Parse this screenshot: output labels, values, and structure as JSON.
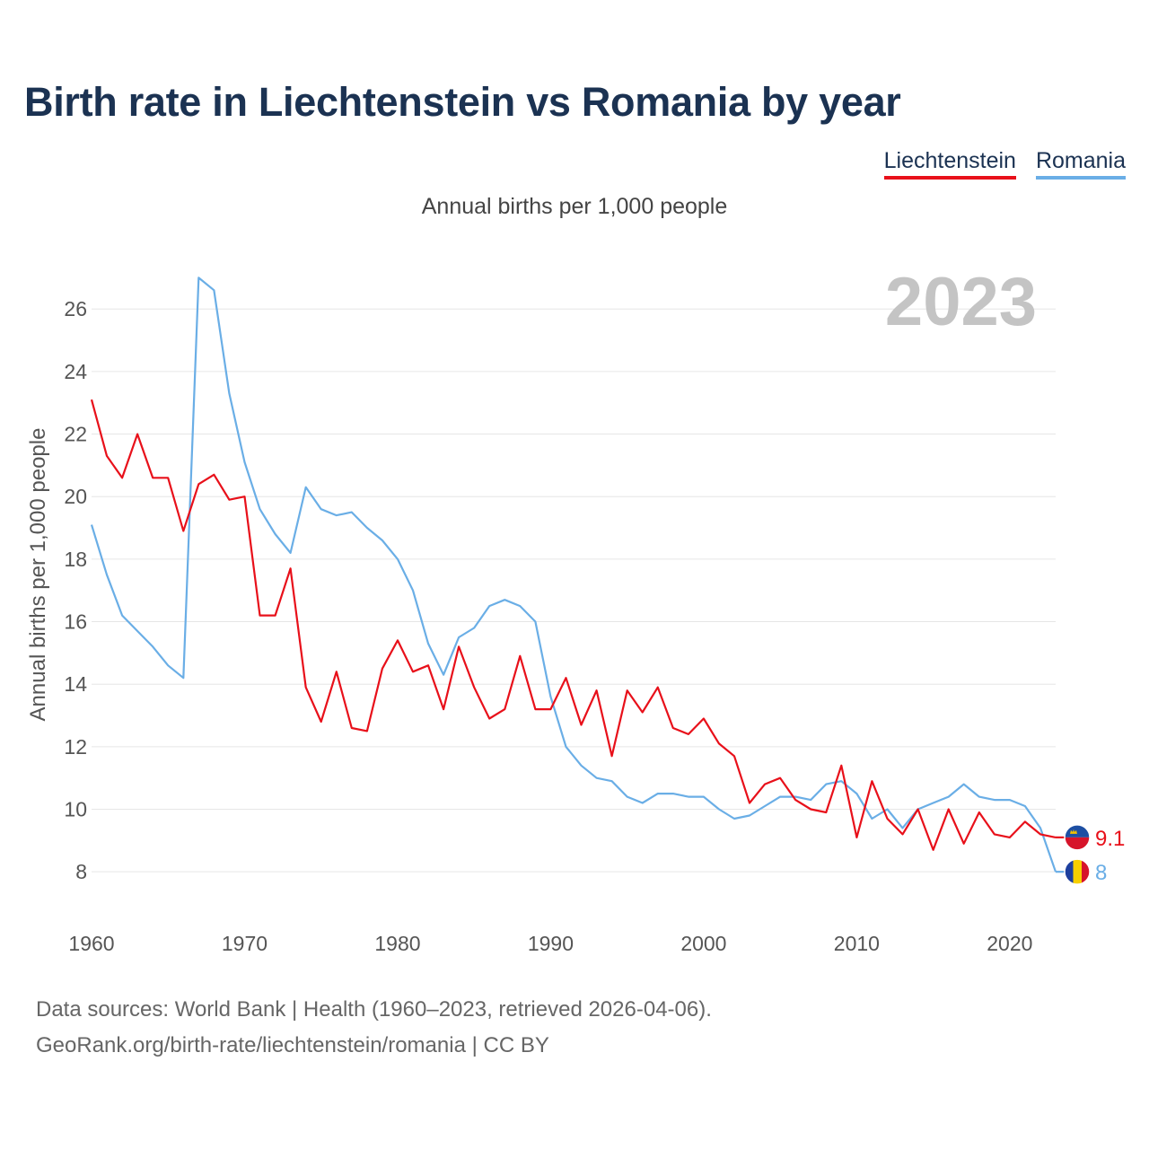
{
  "header": {
    "title": "Birth rate in Liechtenstein vs Romania by year",
    "subtitle": "Annual births per 1,000 people"
  },
  "footer": {
    "source": "Data sources: World Bank | Health (1960–2023, retrieved 2026-04-06).",
    "credit": "GeoRank.org/birth-rate/liechtenstein/romania | CC BY"
  },
  "colors": {
    "liechtenstein": "#e8101a",
    "romania": "#6aaee6",
    "title": "#1b3252"
  },
  "chart_data": {
    "type": "line",
    "title": "Birth rate in Liechtenstein vs Romania by year",
    "subtitle": "Annual births per 1,000 people",
    "ylabel": "Annual births per 1,000 people",
    "xlabel": "",
    "current_year_label": "2023",
    "xlim": [
      1960,
      2023
    ],
    "ylim": [
      7,
      27.5
    ],
    "x_ticks": [
      1960,
      1970,
      1980,
      1990,
      2000,
      2010,
      2020
    ],
    "y_ticks": [
      8,
      10,
      12,
      14,
      16,
      18,
      20,
      22,
      24,
      26
    ],
    "grid": true,
    "legend_position": "top-right",
    "x": [
      1960,
      1961,
      1962,
      1963,
      1964,
      1965,
      1966,
      1967,
      1968,
      1969,
      1970,
      1971,
      1972,
      1973,
      1974,
      1975,
      1976,
      1977,
      1978,
      1979,
      1980,
      1981,
      1982,
      1983,
      1984,
      1985,
      1986,
      1987,
      1988,
      1989,
      1990,
      1991,
      1992,
      1993,
      1994,
      1995,
      1996,
      1997,
      1998,
      1999,
      2000,
      2001,
      2002,
      2003,
      2004,
      2005,
      2006,
      2007,
      2008,
      2009,
      2010,
      2011,
      2012,
      2013,
      2014,
      2015,
      2016,
      2017,
      2018,
      2019,
      2020,
      2021,
      2022,
      2023
    ],
    "series": [
      {
        "name": "Liechtenstein",
        "color": "#e8101a",
        "end_label": "9.1",
        "values": [
          23.1,
          21.3,
          20.6,
          22.0,
          20.6,
          20.6,
          18.9,
          20.4,
          20.7,
          19.9,
          20.0,
          16.2,
          16.2,
          17.7,
          13.9,
          12.8,
          14.4,
          12.6,
          12.5,
          14.5,
          15.4,
          14.4,
          14.6,
          13.2,
          15.2,
          13.9,
          12.9,
          13.2,
          14.9,
          13.2,
          13.2,
          14.2,
          12.7,
          13.8,
          11.7,
          13.8,
          13.1,
          13.9,
          12.6,
          12.4,
          12.9,
          12.1,
          11.7,
          10.2,
          10.8,
          11.0,
          10.3,
          10.0,
          9.9,
          11.4,
          9.1,
          10.9,
          9.7,
          9.2,
          10.0,
          8.7,
          10.0,
          8.9,
          9.9,
          9.2,
          9.1,
          9.6,
          9.2,
          9.1
        ]
      },
      {
        "name": "Romania",
        "color": "#6aaee6",
        "end_label": "8",
        "values": [
          19.1,
          17.5,
          16.2,
          15.7,
          15.2,
          14.6,
          14.2,
          27.0,
          26.6,
          23.3,
          21.1,
          19.6,
          18.8,
          18.2,
          20.3,
          19.6,
          19.4,
          19.5,
          19.0,
          18.6,
          18.0,
          17.0,
          15.3,
          14.3,
          15.5,
          15.8,
          16.5,
          16.7,
          16.5,
          16.0,
          13.6,
          12.0,
          11.4,
          11.0,
          10.9,
          10.4,
          10.2,
          10.5,
          10.5,
          10.4,
          10.4,
          10.0,
          9.7,
          9.8,
          10.1,
          10.4,
          10.4,
          10.3,
          10.8,
          10.9,
          10.5,
          9.7,
          10.0,
          9.4,
          10.0,
          10.2,
          10.4,
          10.8,
          10.4,
          10.3,
          10.3,
          10.1,
          9.4,
          8.0
        ]
      }
    ]
  }
}
